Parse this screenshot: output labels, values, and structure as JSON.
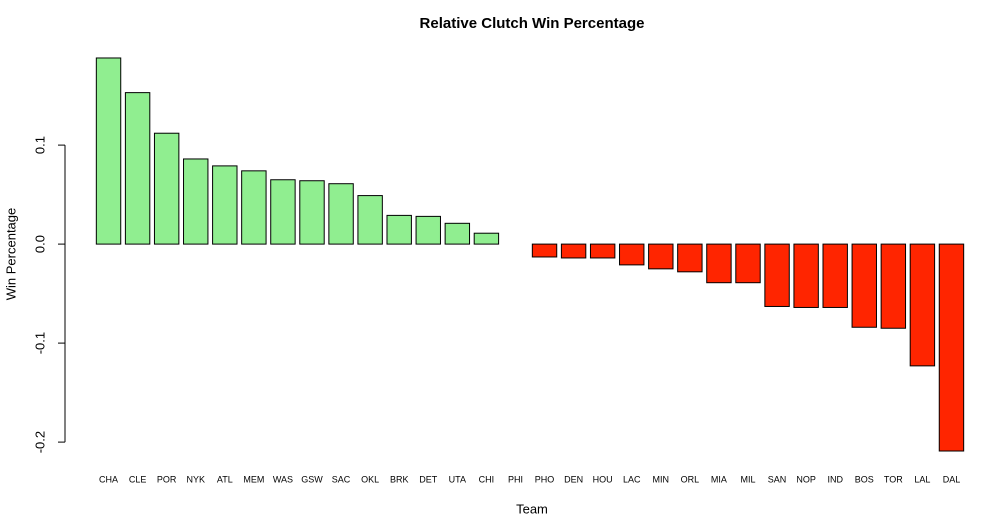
{
  "chart_data": {
    "type": "bar",
    "title": "Relative Clutch Win Percentage",
    "x_label": "Team",
    "y_label": "Win Percentage",
    "categories": [
      "CHA",
      "CLE",
      "POR",
      "NYK",
      "ATL",
      "MEM",
      "WAS",
      "GSW",
      "SAC",
      "OKL",
      "BRK",
      "DET",
      "UTA",
      "CHI",
      "PHI",
      "PHO",
      "DEN",
      "HOU",
      "LAC",
      "MIN",
      "ORL",
      "MIA",
      "MIL",
      "SAN",
      "NOP",
      "IND",
      "BOS",
      "TOR",
      "LAL",
      "DAL"
    ],
    "values": [
      0.188,
      0.153,
      0.112,
      0.086,
      0.079,
      0.074,
      0.065,
      0.064,
      0.061,
      0.049,
      0.029,
      0.028,
      0.021,
      0.011,
      0,
      -0.013,
      -0.014,
      -0.014,
      -0.021,
      -0.025,
      -0.028,
      -0.039,
      -0.039,
      -0.063,
      -0.064,
      -0.064,
      -0.084,
      -0.085,
      -0.123,
      -0.209
    ],
    "colors": [
      "#90ee90",
      "#90ee90",
      "#90ee90",
      "#90ee90",
      "#90ee90",
      "#90ee90",
      "#90ee90",
      "#90ee90",
      "#90ee90",
      "#90ee90",
      "#90ee90",
      "#90ee90",
      "#90ee90",
      "#90ee90",
      "#90ee90",
      "#ff2500",
      "#ff2500",
      "#ff2500",
      "#ff2500",
      "#ff2500",
      "#ff2500",
      "#ff2500",
      "#ff2500",
      "#ff2500",
      "#ff2500",
      "#ff2500",
      "#ff2500",
      "#ff2500",
      "#ff2500",
      "#ff2500"
    ],
    "ylim": [
      -0.21,
      0.19
    ],
    "yticks": [
      -0.2,
      -0.1,
      {
        "value": 0,
        "label": "0.0"
      },
      0.1
    ]
  }
}
